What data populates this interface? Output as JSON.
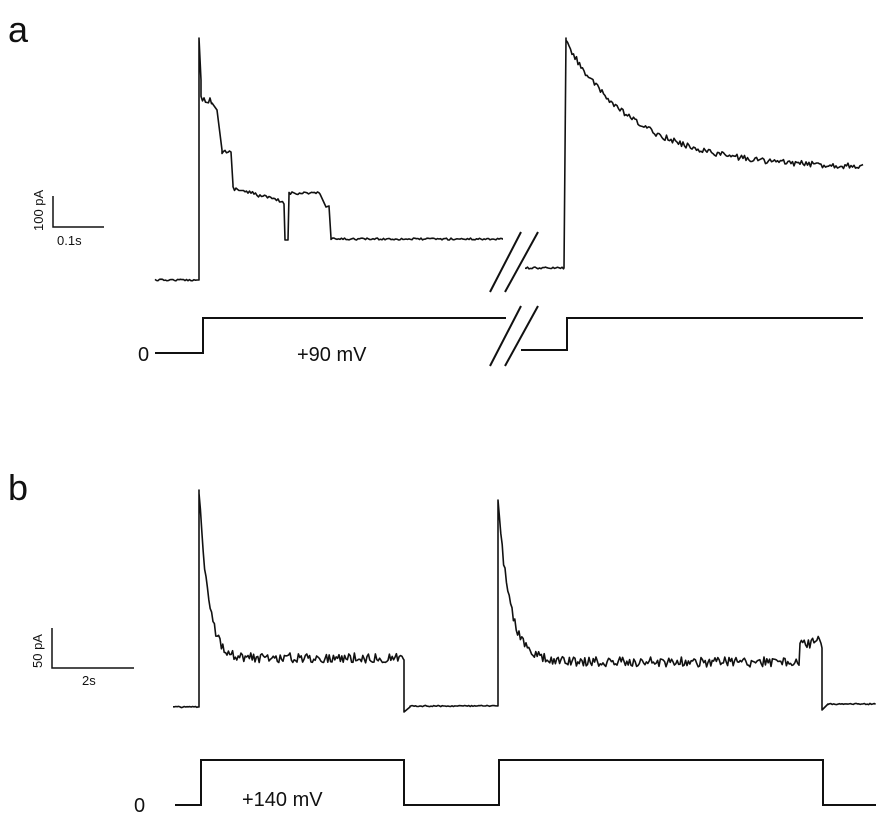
{
  "panel_a": {
    "label": "a",
    "scale_current": "100 pA",
    "scale_time": "0.1s",
    "holding_label": "0",
    "step_label": "+90 mV"
  },
  "panel_b": {
    "label": "b",
    "scale_current": "50 pA",
    "scale_time": "2s",
    "holding_label": "0",
    "step_label": "+140 mV"
  }
}
